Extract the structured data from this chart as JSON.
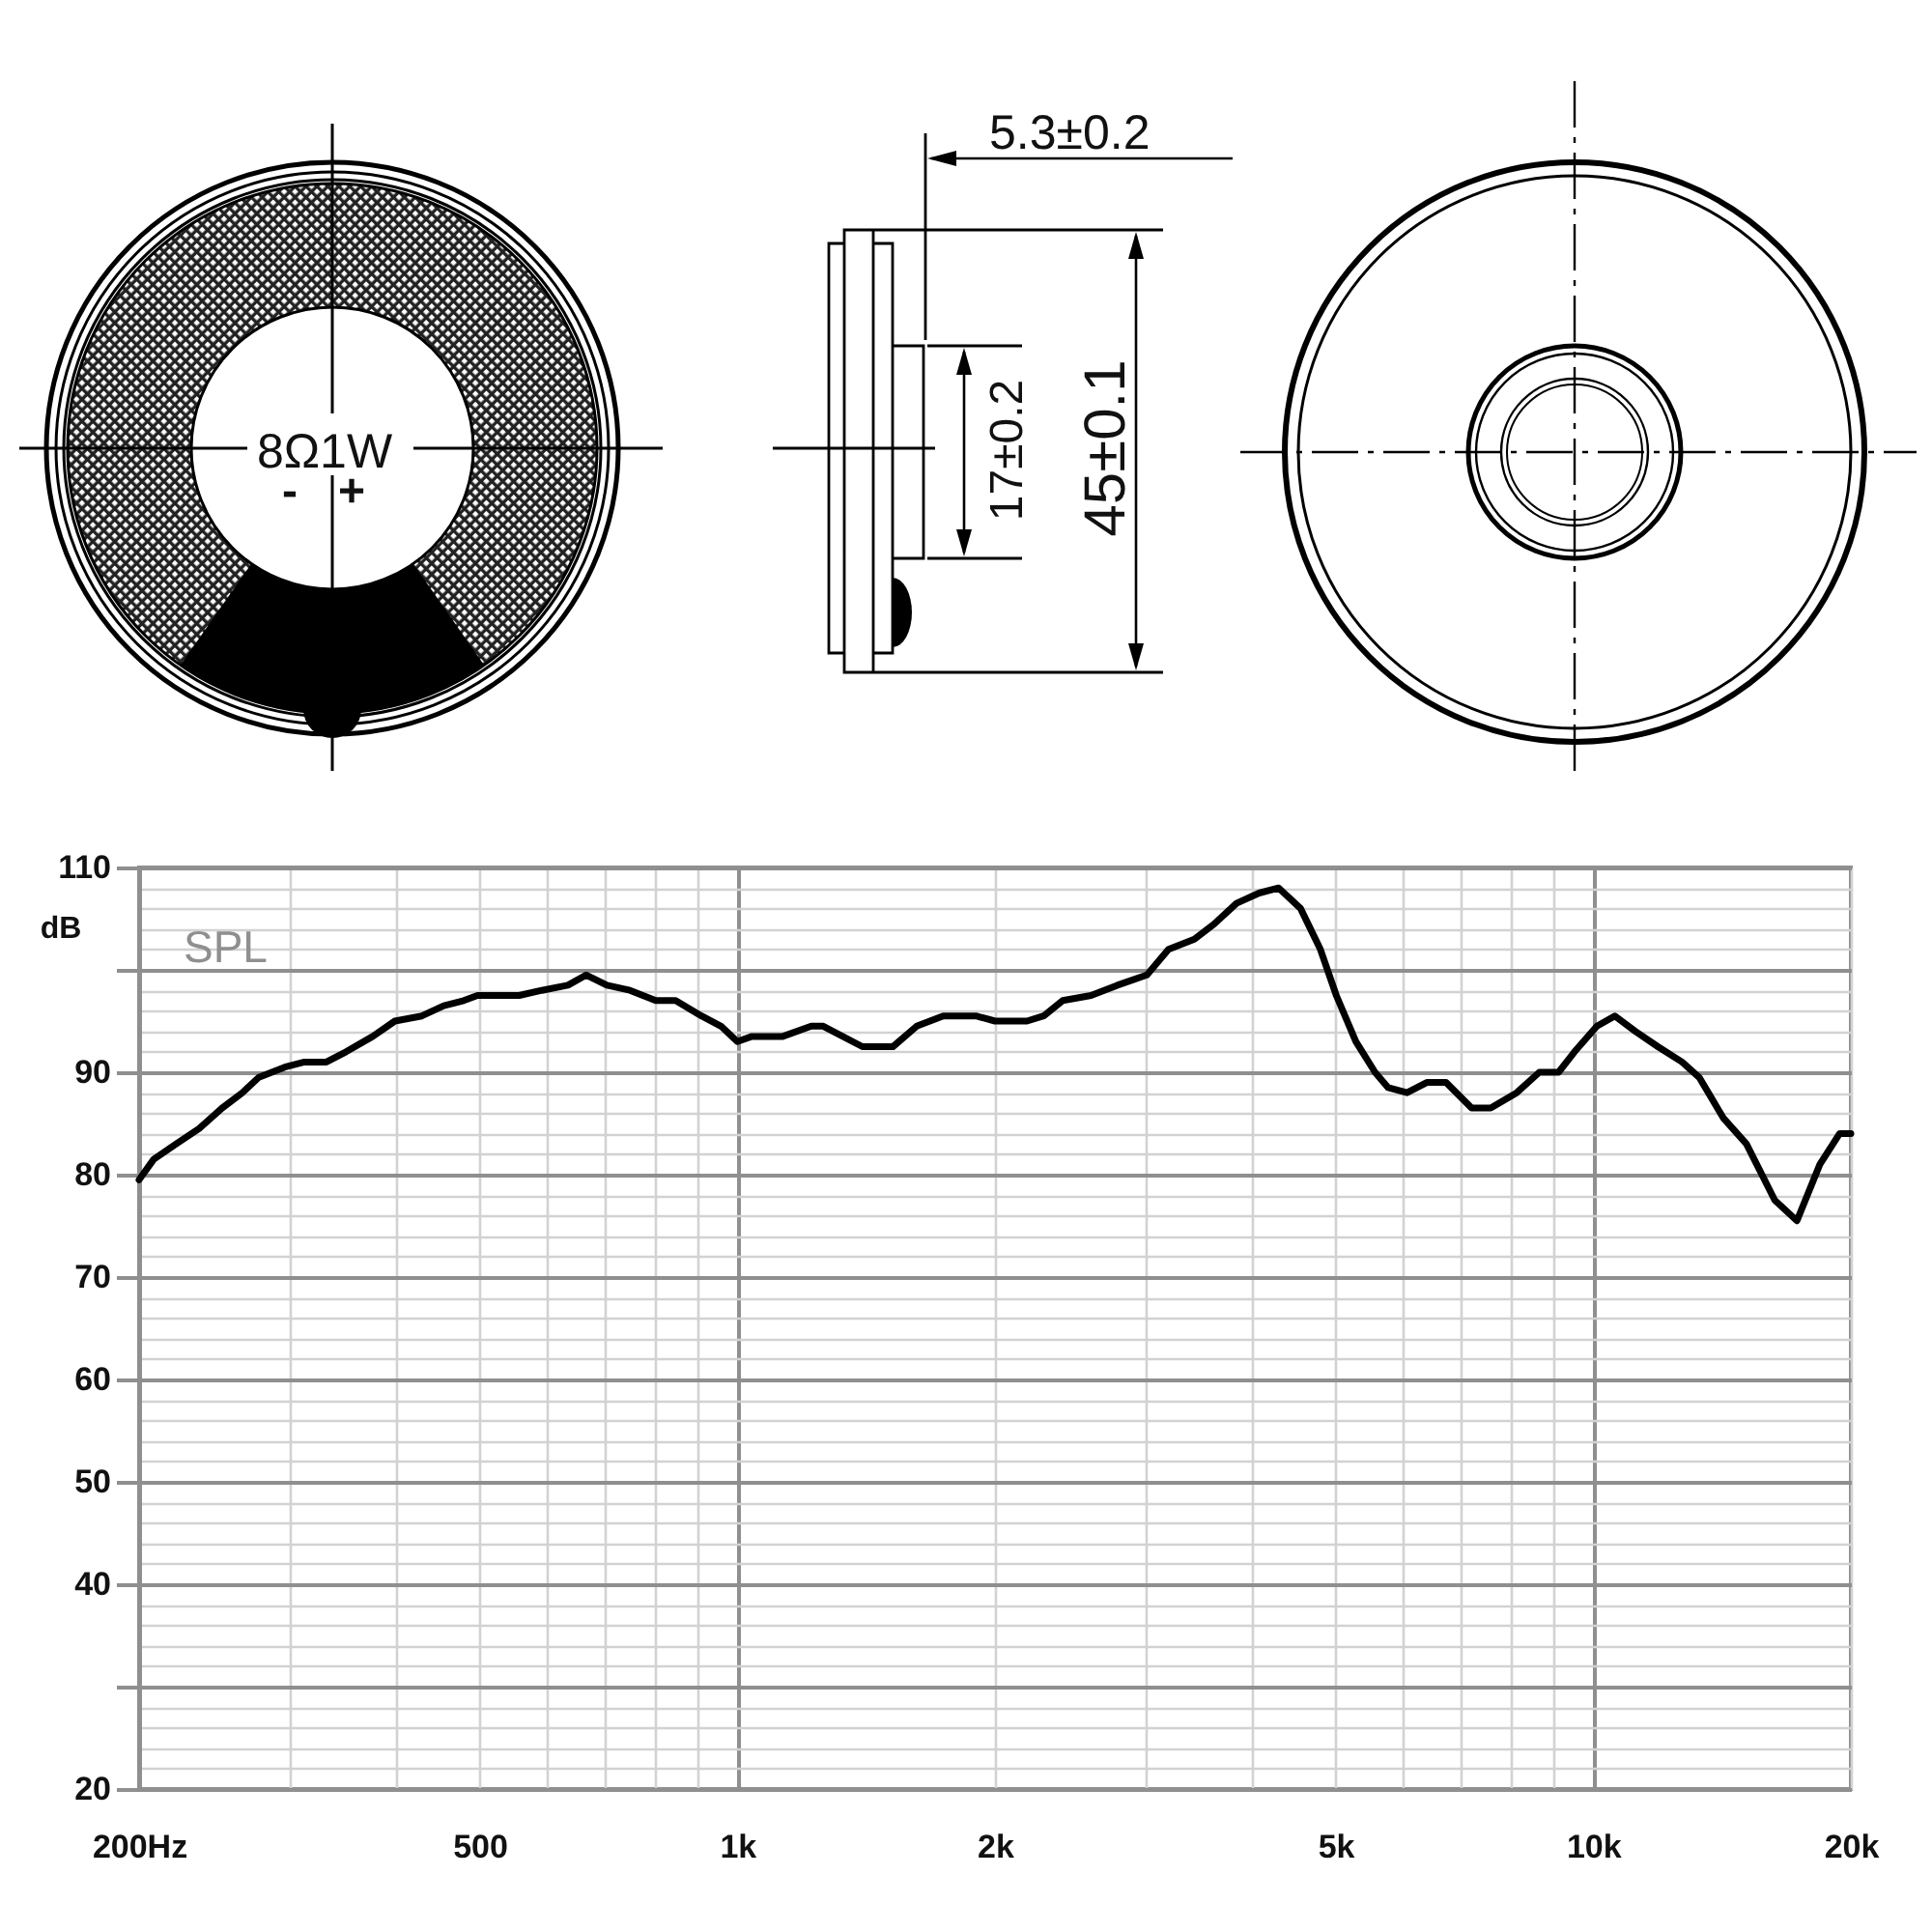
{
  "chart_data": {
    "type": "line",
    "ylabel": "dB",
    "annotations": [
      "SPL",
      "8Ω1W",
      "-",
      "+",
      "5.3±0.2",
      "17±0.2",
      "45±0.1"
    ],
    "x": [
      200,
      208,
      221,
      235,
      250,
      264,
      276,
      296,
      312,
      331,
      349,
      375,
      398,
      428,
      454,
      479,
      497,
      556,
      591,
      634,
      666,
      704,
      749,
      803,
      847,
      908,
      957,
      1000,
      1040,
      1130,
      1220,
      1260,
      1400,
      1520,
      1620,
      1740,
      1900,
      2000,
      2180,
      2280,
      2400,
      2590,
      2780,
      3010,
      3190,
      3420,
      3610,
      3830,
      4070,
      4290,
      4550,
      4800,
      5010,
      5280,
      5560,
      5760,
      6060,
      6390,
      6730,
      7210,
      7590,
      8140,
      8650,
      9110,
      9510,
      10100,
      10600,
      11200,
      11900,
      12700,
      13300,
      14200,
      15100,
      16300,
      17300,
      18400,
      19400,
      20000
    ],
    "series": [
      {
        "color": "#000000",
        "values": [
          79.5,
          81.5,
          83,
          84.5,
          86.5,
          88,
          89.5,
          90.5,
          91,
          91,
          92,
          93.5,
          95,
          95.5,
          96.5,
          97,
          97.5,
          97.5,
          98,
          98.5,
          99.5,
          98.5,
          98,
          97,
          97,
          95.5,
          94.5,
          93,
          93.5,
          93.5,
          94.5,
          94.5,
          92.5,
          92.5,
          94.5,
          95.5,
          95.5,
          95,
          95,
          95.5,
          97,
          97.5,
          98.5,
          99.5,
          102,
          103,
          104.5,
          106.5,
          107.5,
          108,
          106,
          102,
          97.5,
          93,
          90,
          88.5,
          88,
          89,
          89,
          86.5,
          86.5,
          88,
          90,
          90,
          92,
          94.5,
          95.5,
          94,
          92.5,
          91,
          89.5,
          85.5,
          83,
          77.5,
          75.5,
          81,
          84,
          84
        ]
      }
    ],
    "xlim": [
      200,
      20000
    ],
    "ylim": [
      20,
      110
    ],
    "xticks": [
      {
        "value": 200,
        "label": "200Hz"
      },
      {
        "value": 300,
        "label": null
      },
      {
        "value": 400,
        "label": null
      },
      500,
      {
        "value": 600,
        "label": null
      },
      {
        "value": 700,
        "label": null
      },
      {
        "value": 800,
        "label": null
      },
      {
        "value": 900,
        "label": null
      },
      {
        "value": 1000,
        "label": "1k"
      },
      {
        "value": 2000,
        "label": "2k"
      },
      {
        "value": 3000,
        "label": null
      },
      {
        "value": 4000,
        "label": null
      },
      {
        "value": 5000,
        "label": "5k"
      },
      {
        "value": 6000,
        "label": null
      },
      {
        "value": 7000,
        "label": null
      },
      {
        "value": 8000,
        "label": null
      },
      {
        "value": 9000,
        "label": null
      },
      {
        "value": 10000,
        "label": "10k"
      },
      {
        "value": 20000,
        "label": "20k"
      }
    ],
    "yticks": [
      20,
      {
        "value": 22,
        "label": null
      },
      {
        "value": 24,
        "label": null
      },
      {
        "value": 26,
        "label": null
      },
      {
        "value": 28,
        "label": null
      },
      {
        "value": 30,
        "label": null
      },
      {
        "value": 32,
        "label": null
      },
      {
        "value": 34,
        "label": null
      },
      {
        "value": 36,
        "label": null
      },
      {
        "value": 38,
        "label": null
      },
      40,
      {
        "value": 42,
        "label": null
      },
      {
        "value": 44,
        "label": null
      },
      {
        "value": 46,
        "label": null
      },
      {
        "value": 48,
        "label": null
      },
      50,
      {
        "value": 52,
        "label": null
      },
      {
        "value": 54,
        "label": null
      },
      {
        "value": 56,
        "label": null
      },
      {
        "value": 58,
        "label": null
      },
      60,
      {
        "value": 62,
        "label": null
      },
      {
        "value": 64,
        "label": null
      },
      {
        "value": 66,
        "label": null
      },
      {
        "value": 68,
        "label": null
      },
      70,
      {
        "value": 72,
        "label": null
      },
      {
        "value": 74,
        "label": null
      },
      {
        "value": 76,
        "label": null
      },
      {
        "value": 78,
        "label": null
      },
      80,
      {
        "value": 82,
        "label": null
      },
      {
        "value": 84,
        "label": null
      },
      {
        "value": 86,
        "label": null
      },
      {
        "value": 88,
        "label": null
      },
      90,
      {
        "value": 92,
        "label": null
      },
      {
        "value": 94,
        "label": null
      },
      {
        "value": 96,
        "label": null
      },
      {
        "value": 98,
        "label": null
      },
      {
        "value": 100,
        "label": null
      },
      {
        "value": 102,
        "label": null
      },
      {
        "value": 104,
        "label": null
      },
      {
        "value": 106,
        "label": null
      },
      {
        "value": 108,
        "label": null
      },
      110
    ],
    "log": "x",
    "grid": true
  }
}
